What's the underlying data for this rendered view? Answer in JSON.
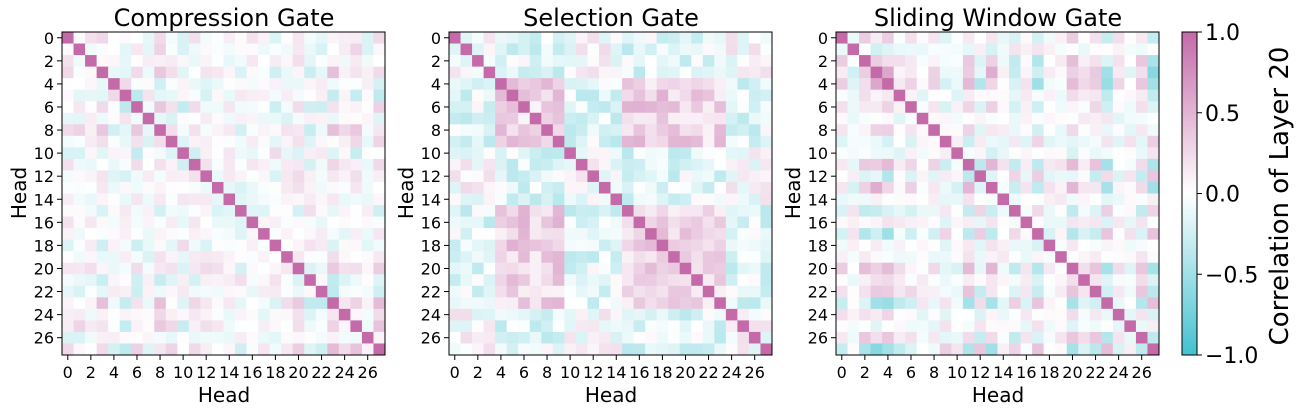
{
  "chart_data": {
    "type": "heatmap",
    "n_heads": 28,
    "colormap": {
      "low": "#43C1CF",
      "mid": "#FFFFFF",
      "high": "#C46AA8"
    },
    "panels": [
      {
        "title": "Compression Gate",
        "xlabel": "Head",
        "ylabel": "Head",
        "seed": 11,
        "pattern": "weak"
      },
      {
        "title": "Selection Gate",
        "xlabel": "Head",
        "ylabel": "Head",
        "seed": 23,
        "pattern": "block"
      },
      {
        "title": "Sliding Window Gate",
        "xlabel": "Head",
        "ylabel": "Head",
        "seed": 37,
        "pattern": "stripe"
      }
    ],
    "colorbar": {
      "label": "Correlation of Layer 20",
      "vmin": -1.0,
      "vmax": 1.0,
      "ticks": [
        1.0,
        0.5,
        0.0,
        -0.5,
        -1.0
      ],
      "tick_labels": [
        "1.0",
        "0.5",
        "0.0",
        "−0.5",
        "−1.0"
      ]
    },
    "tick_labels": [
      "0",
      "2",
      "4",
      "6",
      "8",
      "10",
      "12",
      "14",
      "16",
      "18",
      "20",
      "22",
      "24",
      "26"
    ]
  }
}
